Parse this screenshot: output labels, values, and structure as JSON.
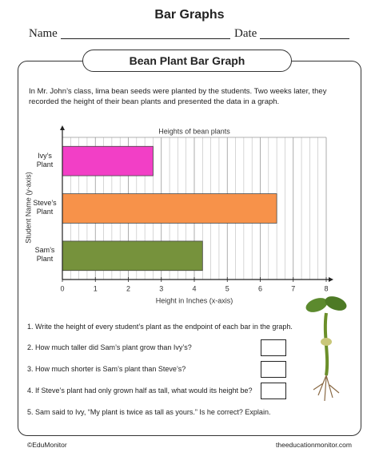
{
  "header": {
    "title": "Bar Graphs",
    "name_label": "Name",
    "date_label": "Date"
  },
  "section_title": "Bean Plant Bar Graph",
  "intro": "In Mr. John’s class, lima bean seeds were planted by the students. Two weeks later, they recorded the height of their bean plants and presented the data in a graph.",
  "chart_data": {
    "type": "hbar",
    "title": "Heights of bean plants",
    "x_label": "Height in Inches (x-axis)",
    "y_label": "Student Name (y-axis)",
    "categories": [
      "Ivy’s Plant",
      "Steve’s Plant",
      "Sam’s Plant"
    ],
    "values": [
      2.75,
      6.5,
      4.25
    ],
    "colors": [
      "#f23fc6",
      "#f7924a",
      "#76923c"
    ],
    "xlim": [
      0,
      8
    ],
    "xticks": [
      0,
      1,
      2,
      3,
      4,
      5,
      6,
      7,
      8
    ],
    "grid": true
  },
  "questions": [
    "1. Write the height of every student’s plant as the endpoint of each bar in the graph.",
    "2. How much taller did Sam’s plant grow than Ivy’s?",
    "3. How much shorter is Sam’s plant than Steve’s?",
    "4. If Steve’s plant had only grown half as tall, what would its height be?",
    "5. Sam said to Ivy, “My plant is twice as tall as yours.” Is he correct? Explain."
  ],
  "footer": {
    "left": "©EduMonitor",
    "right": "theeducationmonitor.com"
  }
}
